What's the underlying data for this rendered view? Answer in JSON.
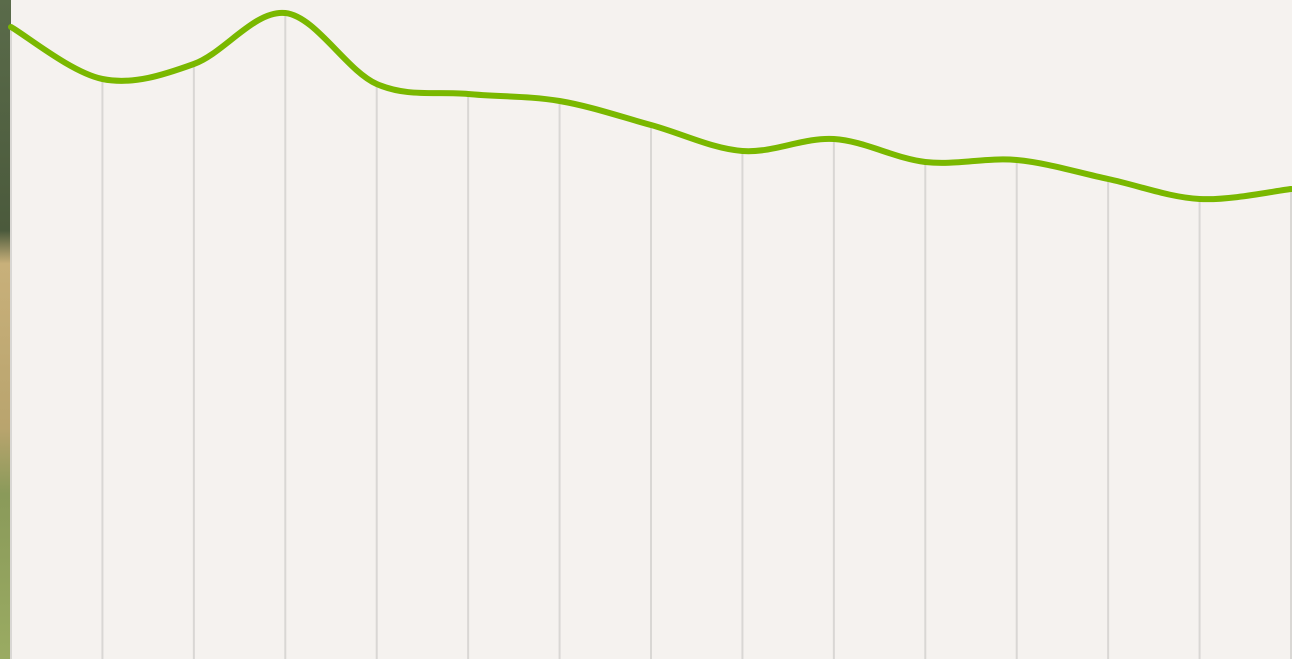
{
  "chart_data": {
    "type": "line",
    "x": [
      0,
      1,
      2,
      3,
      4,
      5,
      6,
      7,
      8,
      9,
      10,
      11,
      12,
      13,
      14
    ],
    "xlim": [
      0,
      14
    ],
    "ylim": [
      0,
      659
    ],
    "series": [
      {
        "color": "#7ab800",
        "values": [
          632,
          580,
          595,
          646,
          575,
          565,
          558,
          534,
          508,
          520,
          497,
          499,
          480,
          460,
          470
        ]
      }
    ],
    "drop_lines": true
  }
}
